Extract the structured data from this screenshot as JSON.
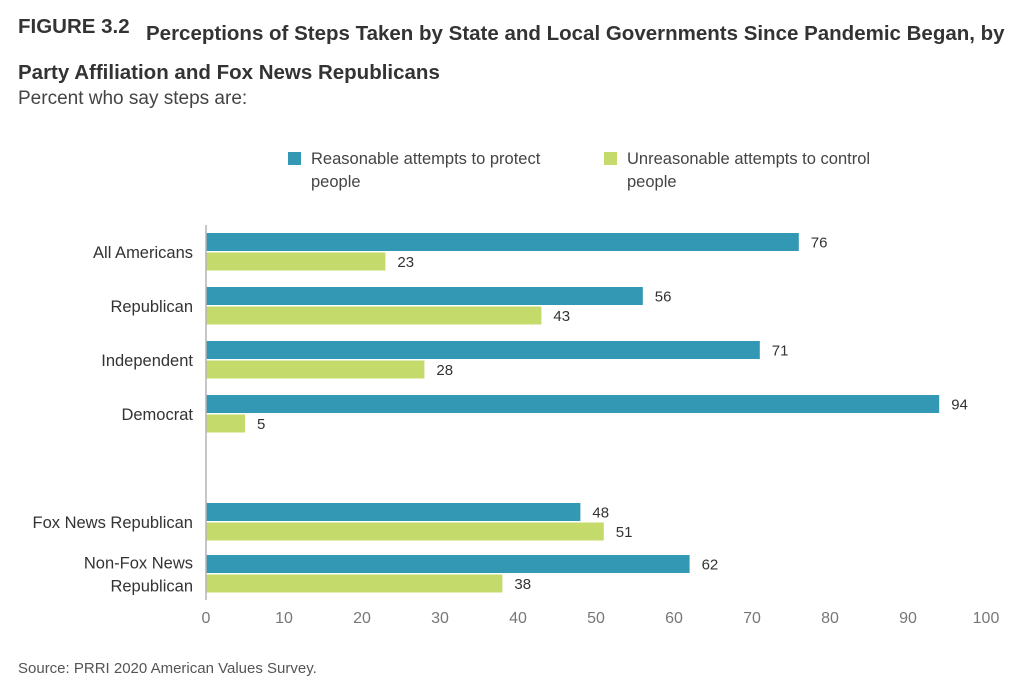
{
  "figure": {
    "label": "FIGURE 3.2",
    "title": "Perceptions of Steps Taken by State and Local Governments Since Pandemic Began, by Party Affiliation and Fox News Republicans",
    "subtitle": "Percent who say steps are:",
    "source": "Source: PRRI 2020 American Values Survey."
  },
  "legend": [
    {
      "label": "Reasonable attempts to protect people",
      "color": "#3398b3"
    },
    {
      "label": "Unreasonable attempts to control people",
      "color": "#c4da6b"
    }
  ],
  "chart_data": {
    "type": "bar",
    "orientation": "horizontal",
    "categories": [
      {
        "label": [
          "All Americans"
        ]
      },
      {
        "label": [
          "Republican"
        ]
      },
      {
        "label": [
          "Independent"
        ]
      },
      {
        "label": [
          "Democrat"
        ]
      },
      {
        "label": [
          "Fox News Republican"
        ]
      },
      {
        "label": [
          "Non-Fox News",
          "Republican"
        ]
      }
    ],
    "series": [
      {
        "name": "Reasonable attempts to protect people",
        "color": "#3398b3",
        "values": [
          76,
          56,
          71,
          94,
          48,
          62
        ]
      },
      {
        "name": "Unreasonable attempts to control people",
        "color": "#c4da6b",
        "values": [
          23,
          43,
          28,
          5,
          51,
          38
        ]
      }
    ],
    "xlim": [
      0,
      100
    ],
    "xticks": [
      0,
      10,
      20,
      30,
      40,
      50,
      60,
      70,
      80,
      90,
      100
    ],
    "data_labels": true,
    "grid": false,
    "legend_position": "top"
  }
}
